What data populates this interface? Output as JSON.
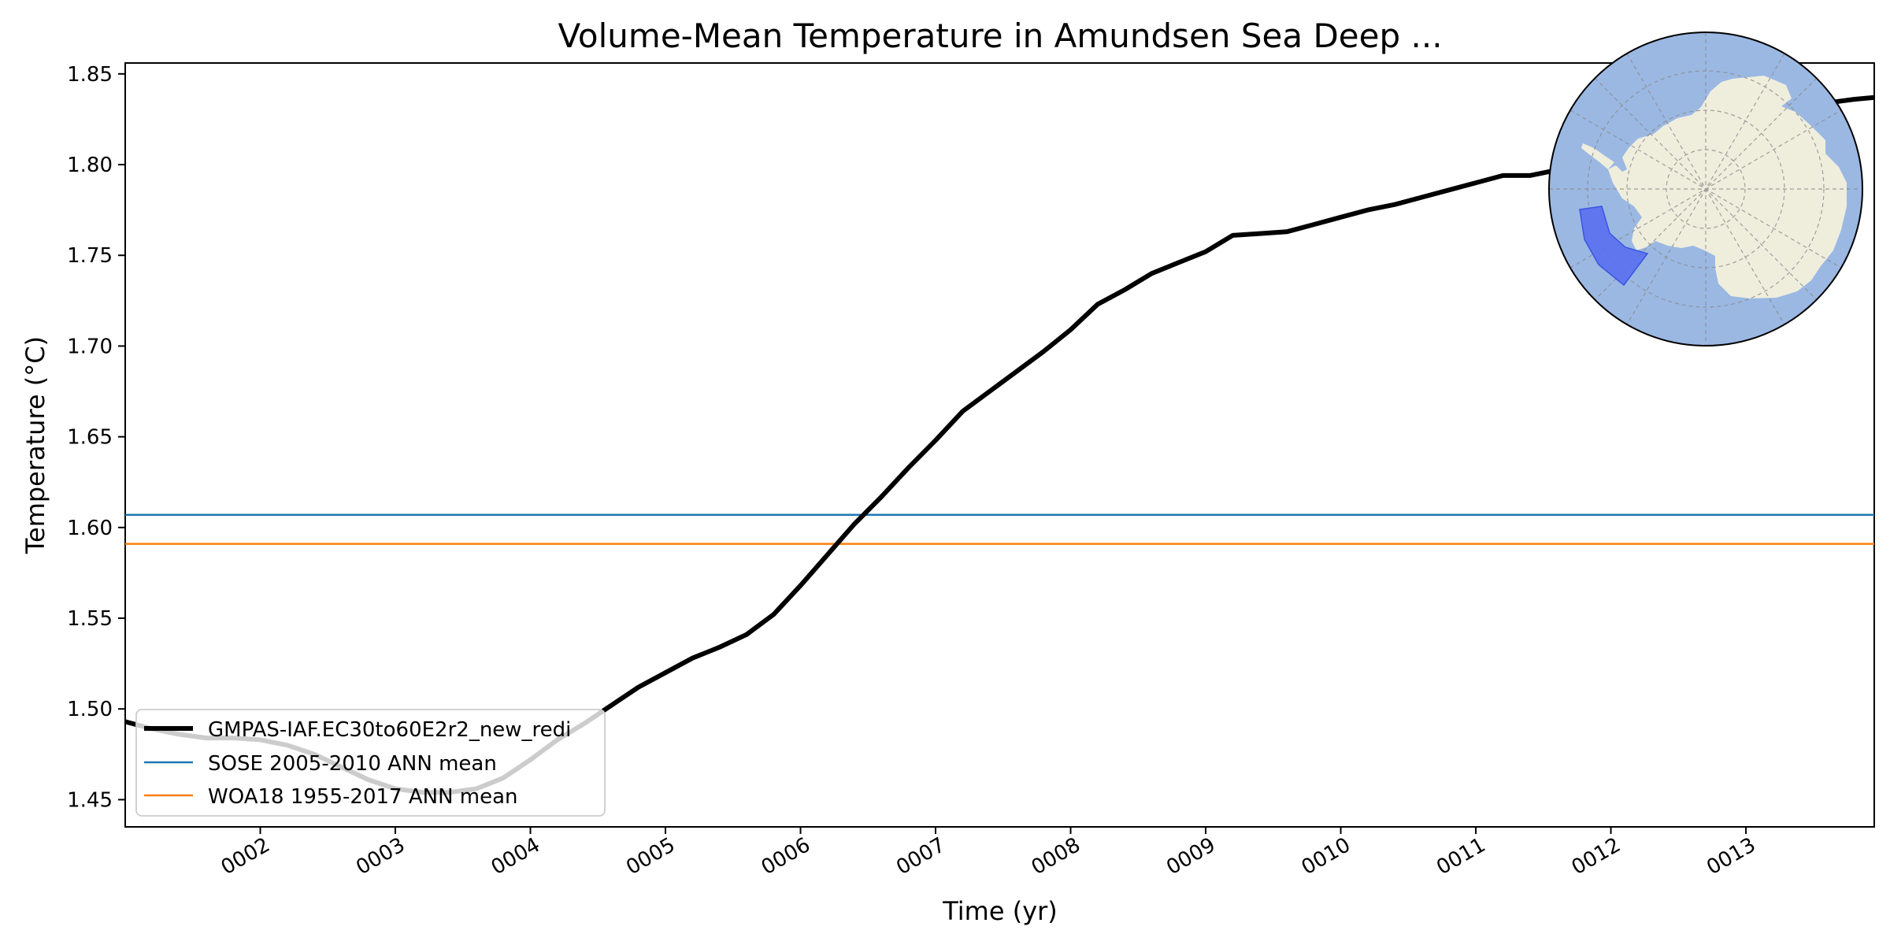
{
  "chart_data": {
    "type": "line",
    "title": "Volume-Mean Temperature in Amundsen Sea Deep ...",
    "xlabel": "Time (yr)",
    "ylabel": "Temperature (°C)",
    "xlim": [
      1.0,
      13.95
    ],
    "ylim": [
      1.435,
      1.856
    ],
    "xticks": [
      2,
      3,
      4,
      5,
      6,
      7,
      8,
      9,
      10,
      11,
      12,
      13
    ],
    "xtick_labels": [
      "0002",
      "0003",
      "0004",
      "0005",
      "0006",
      "0007",
      "0008",
      "0009",
      "0010",
      "0011",
      "0012",
      "0013"
    ],
    "yticks": [
      1.45,
      1.5,
      1.55,
      1.6,
      1.65,
      1.7,
      1.75,
      1.8,
      1.85
    ],
    "ytick_labels": [
      "1.45",
      "1.50",
      "1.55",
      "1.60",
      "1.65",
      "1.70",
      "1.75",
      "1.80",
      "1.85"
    ],
    "grid": false,
    "legend_position": "lower-left",
    "series": [
      {
        "name": "GMPAS-IAF.EC30to60E2r2_new_redi",
        "color": "#000000",
        "style": "line-thick",
        "x": [
          1.0,
          1.2,
          1.4,
          1.6,
          1.8,
          2.0,
          2.2,
          2.4,
          2.6,
          2.8,
          3.0,
          3.2,
          3.4,
          3.6,
          3.8,
          4.0,
          4.2,
          4.4,
          4.6,
          4.8,
          5.0,
          5.2,
          5.4,
          5.6,
          5.8,
          6.0,
          6.2,
          6.4,
          6.6,
          6.8,
          7.0,
          7.2,
          7.4,
          7.6,
          7.8,
          8.0,
          8.2,
          8.4,
          8.6,
          8.8,
          9.0,
          9.2,
          9.4,
          9.6,
          9.8,
          10.0,
          10.2,
          10.4,
          10.6,
          10.8,
          11.0,
          11.2,
          11.4,
          11.6,
          11.8,
          12.0,
          12.2,
          12.4,
          12.6,
          12.8,
          13.0,
          13.2,
          13.4,
          13.6,
          13.8,
          13.95
        ],
        "y": [
          1.493,
          1.489,
          1.486,
          1.484,
          1.484,
          1.483,
          1.48,
          1.475,
          1.468,
          1.461,
          1.456,
          1.454,
          1.454,
          1.456,
          1.462,
          1.472,
          1.483,
          1.492,
          1.502,
          1.512,
          1.52,
          1.528,
          1.534,
          1.541,
          1.552,
          1.568,
          1.585,
          1.602,
          1.617,
          1.633,
          1.648,
          1.664,
          1.675,
          1.686,
          1.697,
          1.709,
          1.723,
          1.731,
          1.74,
          1.746,
          1.752,
          1.761,
          1.762,
          1.763,
          1.767,
          1.771,
          1.775,
          1.778,
          1.782,
          1.786,
          1.79,
          1.794,
          1.794,
          1.797,
          1.799,
          1.802,
          1.806,
          1.81,
          1.815,
          1.82,
          1.825,
          1.829,
          1.832,
          1.834,
          1.836,
          1.837
        ]
      },
      {
        "name": "SOSE 2005-2010 ANN mean",
        "color": "#1f77b4",
        "style": "hline",
        "value": 1.607
      },
      {
        "name": "WOA18 1955-2017 ANN mean",
        "color": "#ff7f0e",
        "style": "hline",
        "value": 1.591
      }
    ],
    "inset": {
      "type": "south-polar-map",
      "ocean_color": "#9bb8e3",
      "land_color": "#efeedd",
      "region_color": "#5a6ff0",
      "region_name": "Amundsen Sea"
    }
  }
}
